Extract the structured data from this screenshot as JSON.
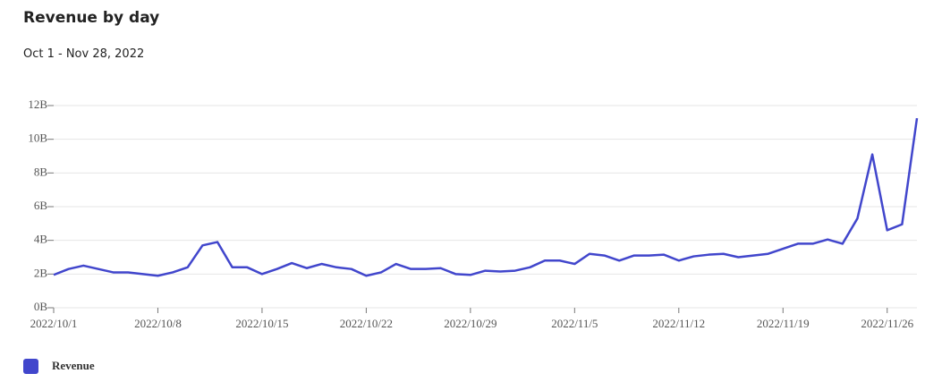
{
  "chart_data": {
    "type": "line",
    "title": "Revenue by day",
    "subtitle": "Oct 1 - Nov 28, 2022",
    "x": [
      "2022-10-01",
      "2022-10-02",
      "2022-10-03",
      "2022-10-04",
      "2022-10-05",
      "2022-10-06",
      "2022-10-07",
      "2022-10-08",
      "2022-10-09",
      "2022-10-10",
      "2022-10-11",
      "2022-10-12",
      "2022-10-13",
      "2022-10-14",
      "2022-10-15",
      "2022-10-16",
      "2022-10-17",
      "2022-10-18",
      "2022-10-19",
      "2022-10-20",
      "2022-10-21",
      "2022-10-22",
      "2022-10-23",
      "2022-10-24",
      "2022-10-25",
      "2022-10-26",
      "2022-10-27",
      "2022-10-28",
      "2022-10-29",
      "2022-10-30",
      "2022-10-31",
      "2022-11-01",
      "2022-11-02",
      "2022-11-03",
      "2022-11-04",
      "2022-11-05",
      "2022-11-06",
      "2022-11-07",
      "2022-11-08",
      "2022-11-09",
      "2022-11-10",
      "2022-11-11",
      "2022-11-12",
      "2022-11-13",
      "2022-11-14",
      "2022-11-15",
      "2022-11-16",
      "2022-11-17",
      "2022-11-18",
      "2022-11-19",
      "2022-11-20",
      "2022-11-21",
      "2022-11-22",
      "2022-11-23",
      "2022-11-24",
      "2022-11-25",
      "2022-11-26",
      "2022-11-27",
      "2022-11-28"
    ],
    "series": [
      {
        "name": "Revenue",
        "color": "#4146cc",
        "values": [
          1.95,
          2.3,
          2.5,
          2.3,
          2.1,
          2.1,
          2.0,
          1.9,
          2.1,
          2.4,
          3.7,
          3.9,
          2.4,
          2.4,
          2.0,
          2.3,
          2.65,
          2.35,
          2.6,
          2.4,
          2.3,
          1.9,
          2.1,
          2.6,
          2.3,
          2.3,
          2.35,
          2.0,
          1.95,
          2.2,
          2.15,
          2.2,
          2.4,
          2.8,
          2.8,
          2.6,
          3.2,
          3.1,
          2.8,
          3.1,
          3.1,
          3.15,
          2.8,
          3.05,
          3.15,
          3.2,
          3.0,
          3.1,
          3.2,
          3.5,
          3.8,
          3.8,
          4.05,
          3.8,
          5.3,
          9.1,
          4.6,
          4.95,
          11.25
        ]
      }
    ],
    "xlim": [
      "2022-10-01",
      "2022-11-28"
    ],
    "xticks": [
      {
        "value": "2022-10-01",
        "label": "2022/10/1"
      },
      {
        "value": "2022-10-08",
        "label": "2022/10/8"
      },
      {
        "value": "2022-10-15",
        "label": "2022/10/15"
      },
      {
        "value": "2022-10-22",
        "label": "2022/10/22"
      },
      {
        "value": "2022-10-29",
        "label": "2022/10/29"
      },
      {
        "value": "2022-11-05",
        "label": "2022/11/5"
      },
      {
        "value": "2022-11-12",
        "label": "2022/11/12"
      },
      {
        "value": "2022-11-19",
        "label": "2022/11/19"
      },
      {
        "value": "2022-11-26",
        "label": "2022/11/26"
      }
    ],
    "ylim": [
      0,
      12
    ],
    "yticks": [
      {
        "value": 0,
        "label": "0B"
      },
      {
        "value": 2,
        "label": "2B"
      },
      {
        "value": 4,
        "label": "4B"
      },
      {
        "value": 6,
        "label": "6B"
      },
      {
        "value": 8,
        "label": "8B"
      },
      {
        "value": 10,
        "label": "10B"
      },
      {
        "value": 12,
        "label": "12B"
      }
    ],
    "grid": true
  }
}
